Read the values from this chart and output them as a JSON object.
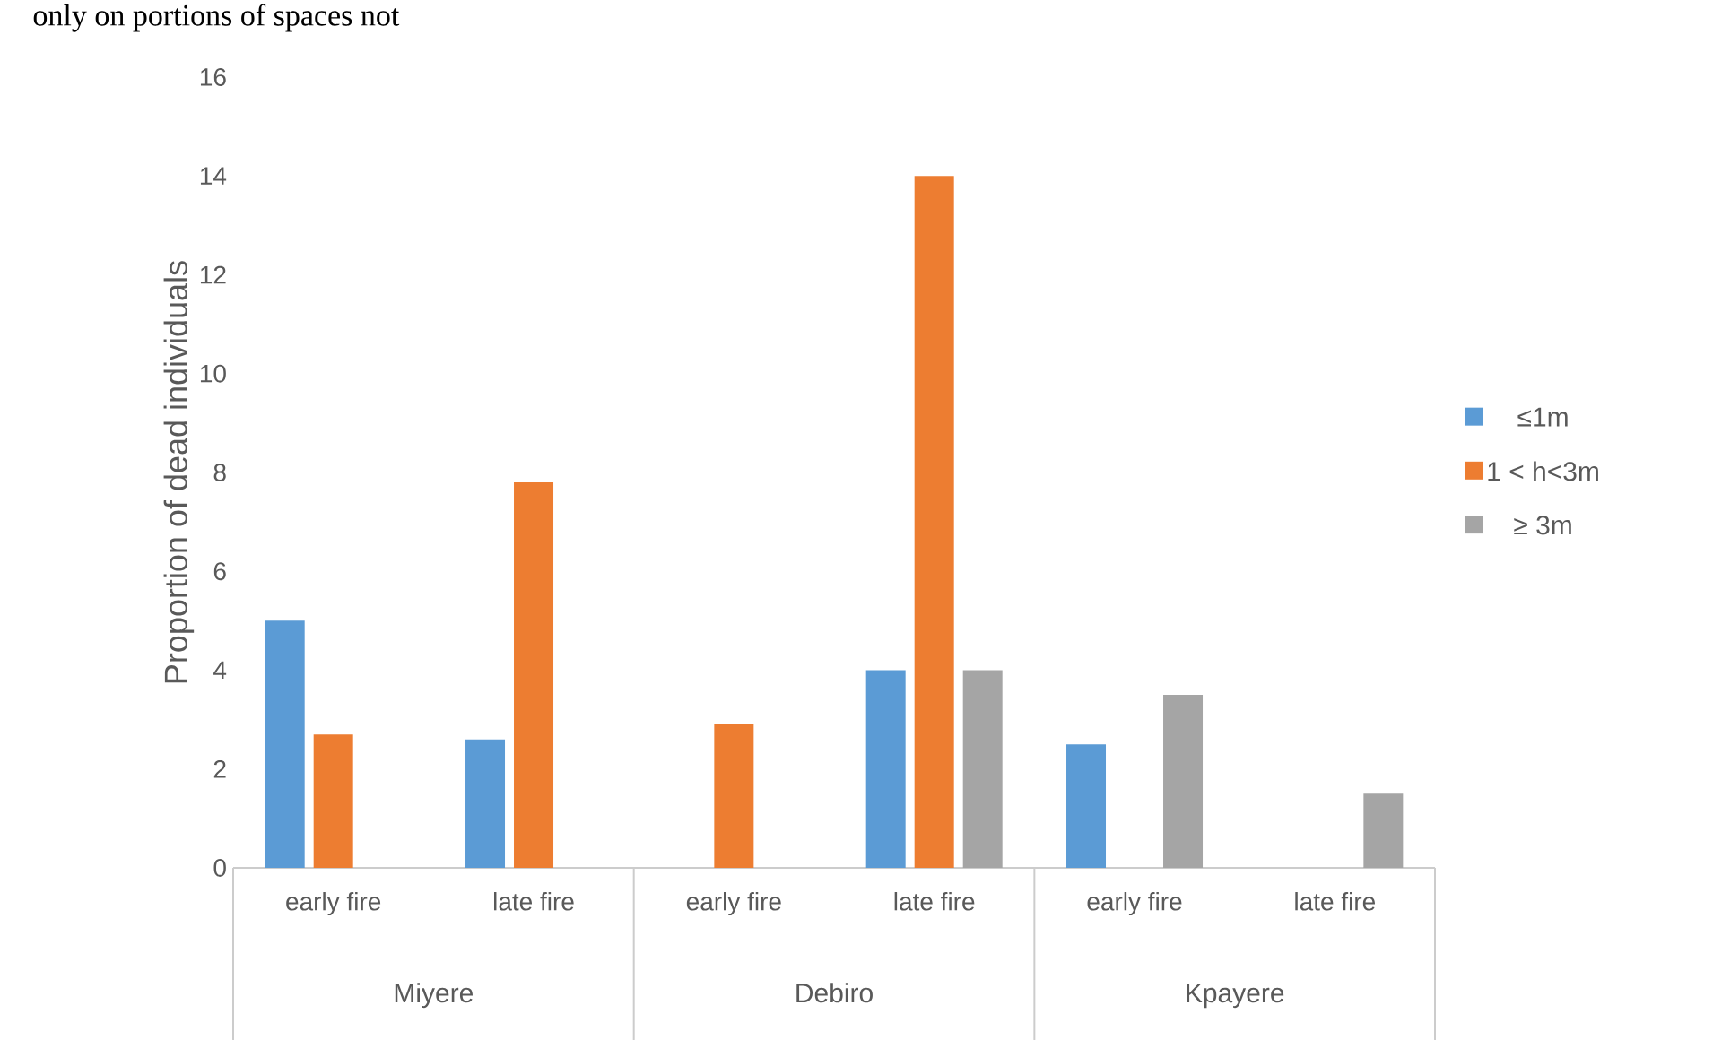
{
  "chart_data": {
    "type": "bar",
    "ylabel": "Proportion of dead individuals",
    "categories": [
      "early fire",
      "late fire",
      "early fire",
      "late fire",
      "early fire",
      "late fire"
    ],
    "series": [
      {
        "name": "≤1m",
        "color": "#5b9bd5",
        "values": [
          5.0,
          2.6,
          null,
          4.0,
          2.5,
          null
        ]
      },
      {
        "name": "1 < h<3m",
        "color": "#ed7d31",
        "values": [
          2.7,
          7.8,
          2.9,
          14.0,
          null,
          null
        ]
      },
      {
        "name": "≥ 3m",
        "color": "#a5a5a5",
        "values": [
          null,
          null,
          null,
          4.0,
          3.5,
          1.5
        ]
      }
    ],
    "ylim": [
      0,
      16
    ],
    "yticks": [
      0,
      2,
      4,
      6,
      8,
      10,
      12,
      14,
      16
    ],
    "annotations": [
      "only on portions of spaces not",
      "Miyere",
      "Debiro",
      "Kpayere"
    ],
    "grid": false,
    "legend": "right"
  }
}
